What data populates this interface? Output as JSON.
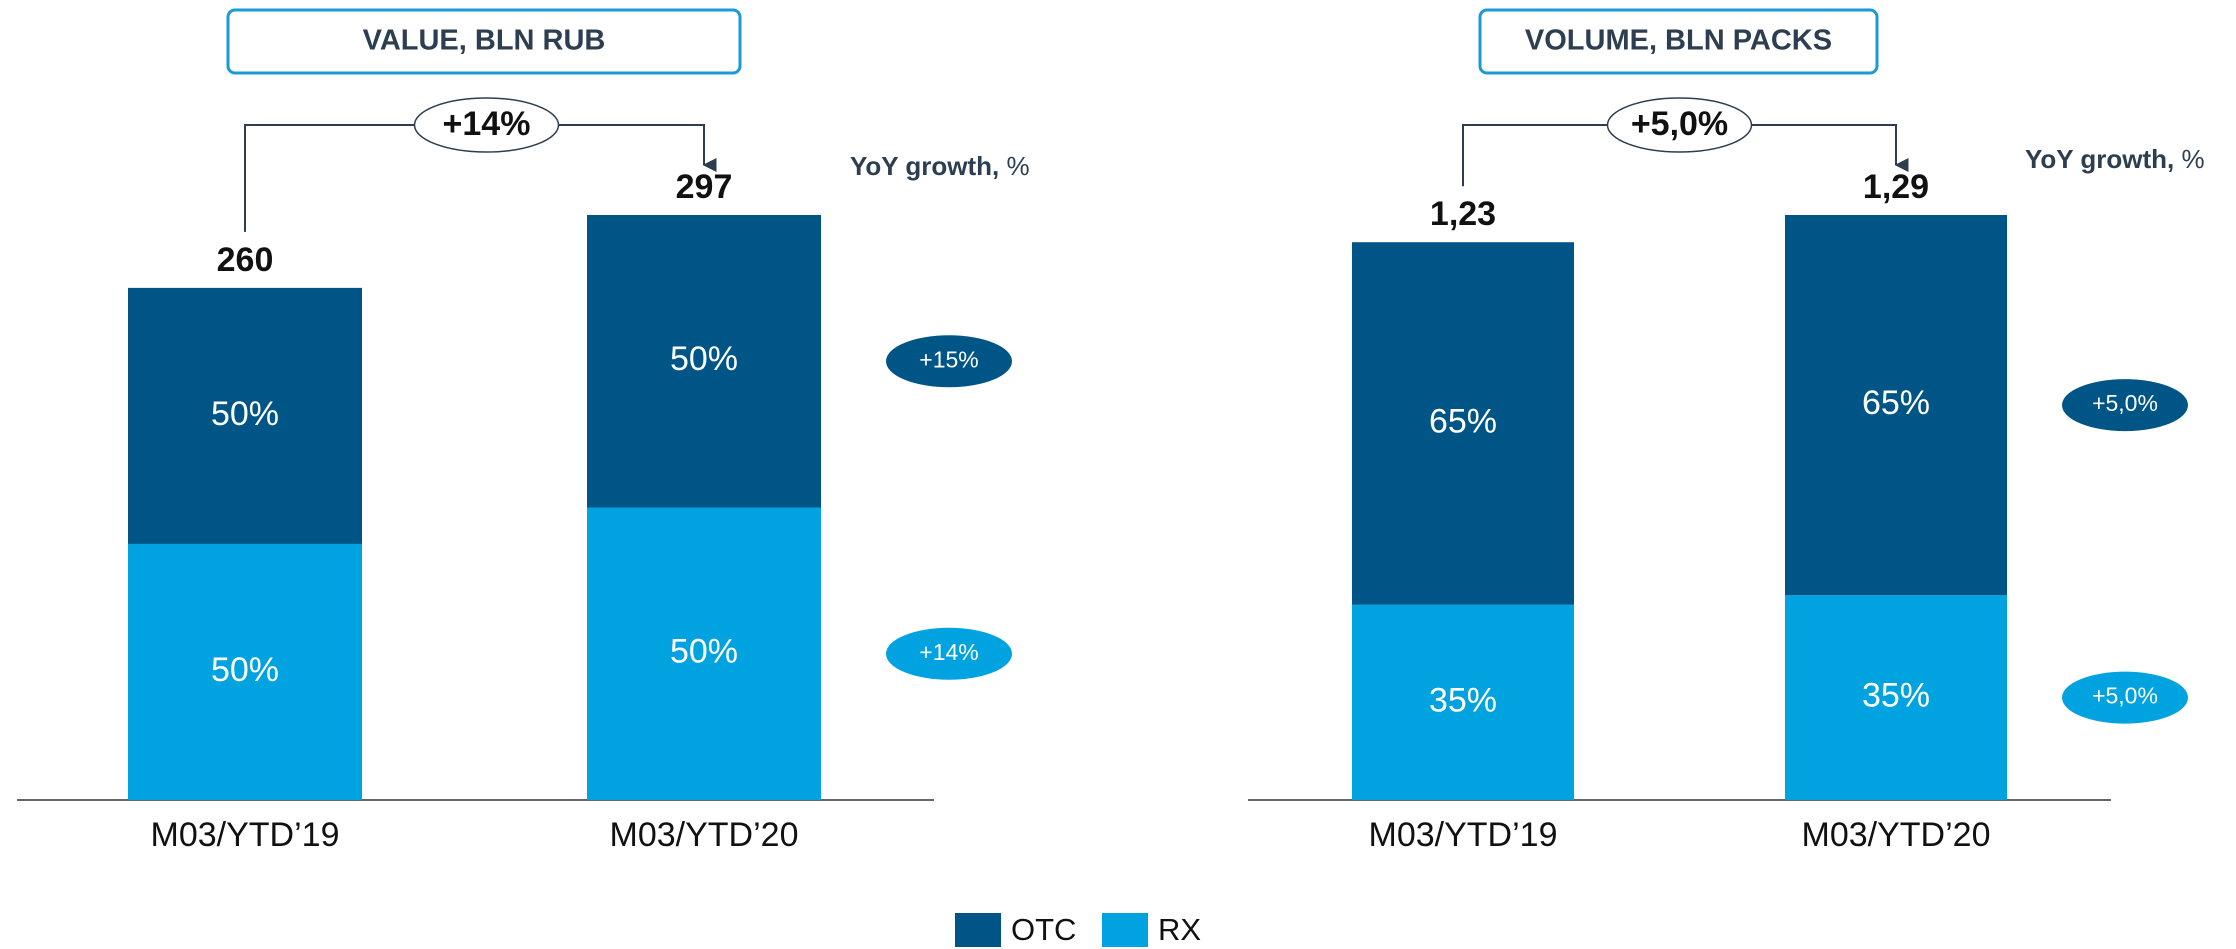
{
  "chart_data": [
    {
      "type": "bar",
      "stacked": true,
      "title": "VALUE, BLN RUB",
      "categories": [
        "M03/YTD’19",
        "M03/YTD’20"
      ],
      "totals": {
        "values": [
          260,
          297
        ]
      },
      "series": [
        {
          "name": "OTC",
          "color": "#005587",
          "values": [
            50,
            50
          ],
          "value_labels": [
            "50%",
            "50%"
          ]
        },
        {
          "name": "RX",
          "color": "#00a3e0",
          "values": [
            50,
            50
          ],
          "value_labels": [
            "50%",
            "50%"
          ]
        }
      ],
      "growth": "+14%",
      "yoy_label": [
        "YoY growth,",
        "%"
      ],
      "yoy": [
        "+15%",
        "+14%"
      ]
    },
    {
      "type": "bar",
      "stacked": true,
      "title": "VOLUME, BLN PACKS",
      "categories": [
        "M03/YTD’19",
        "M03/YTD’20"
      ],
      "totals": {
        "values": [
          1.23,
          1.29
        ],
        "value_labels": [
          "1,23",
          "1,29"
        ]
      },
      "series": [
        {
          "color": "#005587",
          "values": [
            65,
            65
          ],
          "value_labels": [
            "65%",
            "65%"
          ]
        },
        {
          "color": "#00a3e0",
          "values": [
            35,
            35
          ],
          "value_labels": [
            "35%",
            "35%"
          ]
        }
      ],
      "growth": "+5,0%",
      "yoy_label": [
        "YoY growth,",
        "%"
      ],
      "yoy": [
        "+5,0%",
        "+5,0%"
      ]
    }
  ]
}
